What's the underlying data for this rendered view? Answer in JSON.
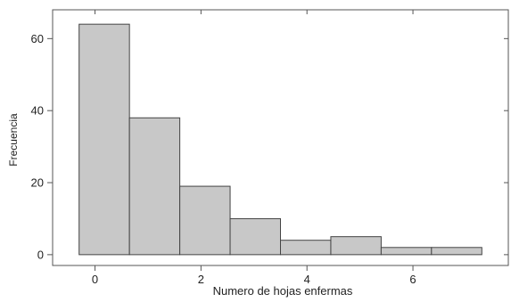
{
  "chart_data": {
    "type": "bar",
    "title": "",
    "xlabel": "Numero de hojas enfermas",
    "ylabel": "Frecuencia",
    "xlim": [
      -0.8,
      7.8
    ],
    "ylim": [
      -3,
      68
    ],
    "x_ticks": [
      0,
      2,
      4,
      6
    ],
    "y_ticks": [
      0,
      20,
      40,
      60
    ],
    "x_tick_labels": [
      "0",
      "2",
      "4",
      "6"
    ],
    "y_tick_labels": [
      "0",
      "20",
      "40",
      "60"
    ],
    "bins": [
      {
        "x0": -0.3,
        "x1": 0.65,
        "value": 64
      },
      {
        "x0": 0.65,
        "x1": 1.6,
        "value": 38
      },
      {
        "x0": 1.6,
        "x1": 2.55,
        "value": 19
      },
      {
        "x0": 2.55,
        "x1": 3.5,
        "value": 10
      },
      {
        "x0": 3.5,
        "x1": 4.45,
        "value": 4
      },
      {
        "x0": 4.45,
        "x1": 5.4,
        "value": 5
      },
      {
        "x0": 5.4,
        "x1": 6.35,
        "value": 2
      },
      {
        "x0": 6.35,
        "x1": 7.3,
        "value": 2
      }
    ],
    "bar_color": "#c8c8c8",
    "bar_edge_color": "#444444",
    "grid": false,
    "legend": "none"
  }
}
